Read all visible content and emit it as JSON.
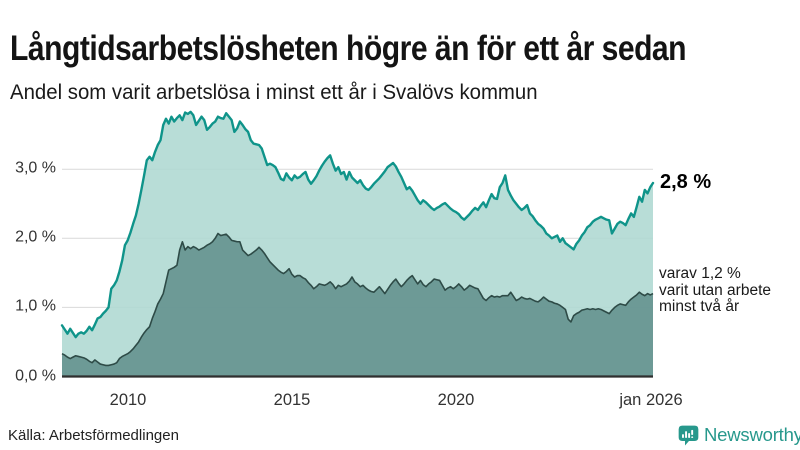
{
  "branding": {
    "name": "Newsworthy",
    "color": "#27988c"
  },
  "chart_data": {
    "type": "area",
    "title": "Långtidsarbetslösheten högre än för ett år sedan",
    "subtitle": "Andel som varit arbetslösa i minst ett år i Svalövs kommun",
    "source": "Källa: Arbetsförmedlingen",
    "unit": "%",
    "x": {
      "start": "2008-01",
      "end": "2026-01",
      "frequency": "monthly",
      "points": 217
    },
    "x_ticks": [
      {
        "label": "2010",
        "month_index": 24
      },
      {
        "label": "2015",
        "month_index": 84
      },
      {
        "label": "2020",
        "month_index": 144
      },
      {
        "label": "jan 2026",
        "month_index": 216
      }
    ],
    "y_ticks": [
      "0,0 %",
      "1,0 %",
      "2,0 %",
      "3,0 %"
    ],
    "gridline_values": [
      1,
      2,
      3
    ],
    "ylim": [
      0,
      4.07
    ],
    "grid": true,
    "legend_position": "none",
    "annotations": {
      "latest_total_label": "2,8 %",
      "latest_two_year_lines": [
        "varav 1,2 %",
        "varit utan arbete",
        "minst två år"
      ]
    },
    "colors": {
      "grid": "#d9d9d9",
      "axis": "#2f2f2f"
    },
    "series": [
      {
        "name": "Arbetslösa minst ett år",
        "latest_value": 2.8,
        "line_color": "#0f948a",
        "fill_color": "#aed8d2",
        "values": [
          0.74,
          0.68,
          0.62,
          0.69,
          0.63,
          0.57,
          0.62,
          0.64,
          0.62,
          0.66,
          0.72,
          0.67,
          0.75,
          0.84,
          0.86,
          0.91,
          0.95,
          1.0,
          1.27,
          1.32,
          1.39,
          1.52,
          1.68,
          1.9,
          1.97,
          2.08,
          2.21,
          2.33,
          2.5,
          2.7,
          2.91,
          3.13,
          3.18,
          3.13,
          3.25,
          3.35,
          3.42,
          3.64,
          3.73,
          3.66,
          3.76,
          3.69,
          3.74,
          3.78,
          3.71,
          3.82,
          3.8,
          3.83,
          3.78,
          3.64,
          3.7,
          3.76,
          3.71,
          3.57,
          3.61,
          3.66,
          3.69,
          3.76,
          3.74,
          3.73,
          3.81,
          3.76,
          3.71,
          3.54,
          3.59,
          3.69,
          3.64,
          3.58,
          3.54,
          3.42,
          3.37,
          3.36,
          3.35,
          3.3,
          3.18,
          3.06,
          3.08,
          3.06,
          3.03,
          2.95,
          2.86,
          2.84,
          2.94,
          2.88,
          2.84,
          2.91,
          2.87,
          2.89,
          2.93,
          2.96,
          2.85,
          2.79,
          2.84,
          2.9,
          2.98,
          3.05,
          3.11,
          3.16,
          3.2,
          3.08,
          2.98,
          3.03,
          2.93,
          2.96,
          2.85,
          2.96,
          2.88,
          2.84,
          2.8,
          2.84,
          2.77,
          2.72,
          2.7,
          2.74,
          2.79,
          2.83,
          2.87,
          2.92,
          2.97,
          3.03,
          3.06,
          3.09,
          3.04,
          2.96,
          2.89,
          2.8,
          2.71,
          2.74,
          2.69,
          2.62,
          2.55,
          2.5,
          2.55,
          2.52,
          2.48,
          2.44,
          2.41,
          2.44,
          2.46,
          2.49,
          2.51,
          2.47,
          2.43,
          2.4,
          2.38,
          2.35,
          2.3,
          2.27,
          2.31,
          2.35,
          2.4,
          2.44,
          2.41,
          2.47,
          2.52,
          2.45,
          2.55,
          2.64,
          2.58,
          2.57,
          2.74,
          2.8,
          2.91,
          2.7,
          2.62,
          2.55,
          2.5,
          2.45,
          2.41,
          2.44,
          2.48,
          2.36,
          2.32,
          2.26,
          2.21,
          2.18,
          2.14,
          2.07,
          2.04,
          2.0,
          2.02,
          2.04,
          1.95,
          2.0,
          1.93,
          1.9,
          1.87,
          1.84,
          1.92,
          1.97,
          2.04,
          2.09,
          2.16,
          2.19,
          2.24,
          2.27,
          2.29,
          2.31,
          2.29,
          2.27,
          2.26,
          2.07,
          2.14,
          2.21,
          2.24,
          2.22,
          2.19,
          2.28,
          2.36,
          2.31,
          2.45,
          2.6,
          2.53,
          2.7,
          2.65,
          2.74,
          2.8
        ]
      },
      {
        "name": "Utan arbete minst två år",
        "latest_value": 1.2,
        "line_color": "#2e4b47",
        "fill_color": "#689692",
        "values": [
          0.33,
          0.31,
          0.28,
          0.26,
          0.28,
          0.3,
          0.29,
          0.28,
          0.27,
          0.25,
          0.22,
          0.2,
          0.24,
          0.21,
          0.18,
          0.17,
          0.16,
          0.16,
          0.17,
          0.18,
          0.2,
          0.26,
          0.29,
          0.31,
          0.33,
          0.36,
          0.4,
          0.45,
          0.5,
          0.57,
          0.63,
          0.68,
          0.72,
          0.84,
          0.94,
          1.05,
          1.12,
          1.2,
          1.37,
          1.54,
          1.56,
          1.58,
          1.61,
          1.83,
          1.95,
          1.83,
          1.88,
          1.85,
          1.88,
          1.86,
          1.83,
          1.85,
          1.87,
          1.9,
          1.92,
          1.95,
          2.0,
          2.07,
          2.04,
          2.05,
          2.06,
          2.02,
          1.97,
          1.96,
          1.95,
          1.95,
          1.83,
          1.79,
          1.75,
          1.77,
          1.8,
          1.83,
          1.87,
          1.83,
          1.78,
          1.72,
          1.66,
          1.62,
          1.58,
          1.54,
          1.51,
          1.49,
          1.52,
          1.56,
          1.48,
          1.44,
          1.46,
          1.46,
          1.43,
          1.41,
          1.36,
          1.32,
          1.27,
          1.3,
          1.34,
          1.33,
          1.32,
          1.34,
          1.37,
          1.33,
          1.27,
          1.32,
          1.3,
          1.32,
          1.34,
          1.38,
          1.44,
          1.37,
          1.34,
          1.3,
          1.32,
          1.28,
          1.25,
          1.23,
          1.22,
          1.26,
          1.3,
          1.25,
          1.2,
          1.26,
          1.32,
          1.37,
          1.41,
          1.35,
          1.3,
          1.34,
          1.39,
          1.43,
          1.46,
          1.4,
          1.34,
          1.39,
          1.33,
          1.3,
          1.34,
          1.37,
          1.41,
          1.4,
          1.39,
          1.32,
          1.25,
          1.28,
          1.3,
          1.27,
          1.3,
          1.34,
          1.3,
          1.25,
          1.28,
          1.32,
          1.3,
          1.28,
          1.27,
          1.2,
          1.13,
          1.1,
          1.14,
          1.17,
          1.15,
          1.16,
          1.15,
          1.17,
          1.17,
          1.17,
          1.22,
          1.16,
          1.1,
          1.12,
          1.15,
          1.13,
          1.12,
          1.13,
          1.11,
          1.09,
          1.08,
          1.11,
          1.15,
          1.12,
          1.09,
          1.08,
          1.06,
          1.05,
          1.03,
          1.0,
          0.97,
          0.83,
          0.79,
          0.88,
          0.91,
          0.93,
          0.96,
          0.97,
          0.98,
          0.97,
          0.98,
          0.97,
          0.98,
          0.97,
          0.95,
          0.93,
          0.91,
          0.96,
          1.0,
          1.03,
          1.05,
          1.04,
          1.03,
          1.08,
          1.12,
          1.15,
          1.18,
          1.22,
          1.19,
          1.17,
          1.2,
          1.18,
          1.2
        ]
      }
    ]
  }
}
